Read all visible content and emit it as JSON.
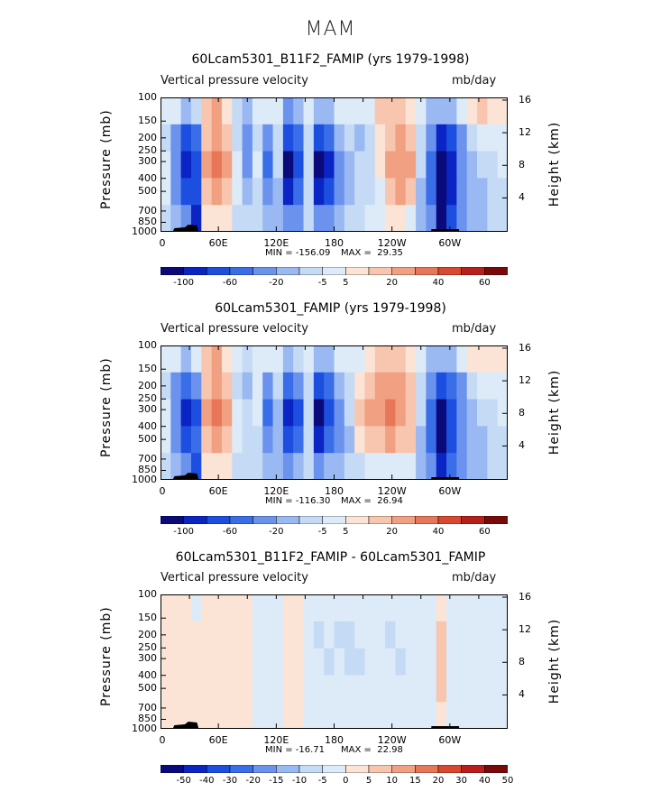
{
  "figure_title": "MAM",
  "chart_data": [
    {
      "type": "heatmap",
      "title": "60Lcam5301_B11F2_FAMIP (yrs 1979-1998)",
      "variable": "Vertical pressure velocity",
      "units": "mb/day",
      "ylabel": "Pressure (mb)",
      "ylabel_right": "Height (km)",
      "y_ticks": [
        "100",
        "150",
        "200",
        "250",
        "300",
        "400",
        "500",
        "700",
        "850",
        "1000"
      ],
      "height_ticks": [
        "16",
        "12",
        "8",
        "4"
      ],
      "x_ticks": [
        "0",
        "60E",
        "120E",
        "180",
        "120W",
        "60W"
      ],
      "min_label": "MIN = -156.09",
      "max_label": "MAX =  29.35",
      "colorbar_labels": [
        "-100",
        "-60",
        "-20",
        "-5",
        "5",
        "20",
        "40",
        "60"
      ],
      "colorbar_colors": [
        "#0a0a7a",
        "#0b24c4",
        "#1c4fe0",
        "#3a6ee8",
        "#6b93ee",
        "#9ab8f2",
        "#c5daf5",
        "#dcebf7",
        "#fbe4d6",
        "#f8c6ae",
        "#f1a082",
        "#e8775a",
        "#d9482f",
        "#b81f1a",
        "#7a0a0a"
      ],
      "field_values": [
        [
          -2,
          -4,
          -12,
          -6,
          6,
          14,
          4,
          -6,
          -12,
          -2,
          -4,
          -2,
          -20,
          -10,
          -2,
          -18,
          -12,
          -4,
          -2,
          -2,
          -4,
          6,
          8,
          6,
          2,
          -4,
          -10,
          -14,
          -12,
          -4,
          4,
          6,
          4,
          2
        ],
        [
          -6,
          -20,
          -60,
          -40,
          10,
          20,
          10,
          -6,
          -30,
          -6,
          -20,
          -6,
          -60,
          -40,
          -6,
          -70,
          -50,
          -10,
          -6,
          -10,
          -8,
          4,
          10,
          14,
          10,
          -6,
          -30,
          -90,
          -60,
          -20,
          -6,
          -4,
          -4,
          -2
        ],
        [
          -4,
          -30,
          -90,
          -70,
          18,
          26,
          14,
          -4,
          -20,
          -4,
          -40,
          -8,
          -100,
          -60,
          -8,
          -120,
          -80,
          -20,
          -10,
          -8,
          -8,
          2,
          14,
          20,
          16,
          -8,
          -40,
          -140,
          -90,
          -30,
          -10,
          -8,
          -6,
          -4
        ],
        [
          -4,
          -30,
          -70,
          -60,
          10,
          16,
          10,
          -4,
          -10,
          -6,
          -30,
          -10,
          -80,
          -50,
          -8,
          -90,
          -60,
          -20,
          -10,
          -8,
          -6,
          0,
          8,
          12,
          10,
          -10,
          -40,
          -120,
          -80,
          -30,
          -14,
          -10,
          -8,
          -6
        ],
        [
          -6,
          -14,
          -20,
          -80,
          2,
          4,
          2,
          -6,
          -6,
          -8,
          -14,
          -10,
          -30,
          -20,
          -8,
          -30,
          -20,
          -12,
          -8,
          -6,
          -4,
          -2,
          2,
          2,
          0,
          -10,
          -30,
          -100,
          -60,
          -20,
          -12,
          -10,
          -8,
          -8
        ]
      ]
    },
    {
      "type": "heatmap",
      "title": "60Lcam5301_FAMIP (yrs 1979-1998)",
      "variable": "Vertical pressure velocity",
      "units": "mb/day",
      "ylabel": "Pressure (mb)",
      "ylabel_right": "Height (km)",
      "y_ticks": [
        "100",
        "150",
        "200",
        "250",
        "300",
        "400",
        "500",
        "700",
        "850",
        "1000"
      ],
      "height_ticks": [
        "16",
        "12",
        "8",
        "4"
      ],
      "x_ticks": [
        "0",
        "60E",
        "120E",
        "180",
        "120W",
        "60W"
      ],
      "min_label": "MIN = -116.30",
      "max_label": "MAX =  26.94",
      "colorbar_labels": [
        "-100",
        "-60",
        "-20",
        "-5",
        "5",
        "20",
        "40",
        "60"
      ],
      "colorbar_colors": [
        "#0a0a7a",
        "#0b24c4",
        "#1c4fe0",
        "#3a6ee8",
        "#6b93ee",
        "#9ab8f2",
        "#c5daf5",
        "#dcebf7",
        "#fbe4d6",
        "#f8c6ae",
        "#f1a082",
        "#e8775a",
        "#d9482f",
        "#b81f1a",
        "#7a0a0a"
      ],
      "field_values": [
        [
          -2,
          -4,
          -10,
          -4,
          6,
          12,
          2,
          -4,
          -8,
          -2,
          -4,
          -2,
          -16,
          -8,
          -2,
          -14,
          -10,
          -2,
          -2,
          -2,
          2,
          6,
          8,
          6,
          2,
          -4,
          -10,
          -12,
          -10,
          -4,
          2,
          4,
          2,
          2
        ],
        [
          -6,
          -20,
          -50,
          -30,
          10,
          18,
          8,
          -6,
          -10,
          -4,
          -20,
          -8,
          -50,
          -30,
          -6,
          -60,
          -40,
          -10,
          -6,
          4,
          8,
          14,
          18,
          16,
          8,
          -6,
          -30,
          -70,
          -50,
          -20,
          -6,
          -4,
          -4,
          -2
        ],
        [
          -4,
          -30,
          -80,
          -60,
          16,
          24,
          12,
          -4,
          -8,
          -4,
          -40,
          -10,
          -90,
          -60,
          -8,
          -100,
          -70,
          -20,
          -8,
          6,
          12,
          20,
          24,
          20,
          10,
          -8,
          -40,
          -110,
          -70,
          -30,
          -10,
          -8,
          -6,
          -4
        ],
        [
          -4,
          -30,
          -60,
          -50,
          10,
          14,
          8,
          -4,
          -6,
          -6,
          -30,
          -10,
          -70,
          -40,
          -8,
          -80,
          -50,
          -20,
          -10,
          2,
          6,
          10,
          12,
          10,
          6,
          -10,
          -40,
          -100,
          -60,
          -30,
          -14,
          -10,
          -8,
          -6
        ],
        [
          -6,
          -14,
          -20,
          -60,
          2,
          4,
          2,
          -6,
          -6,
          -8,
          -14,
          -10,
          -20,
          -14,
          -8,
          -20,
          -14,
          -12,
          -8,
          -6,
          -4,
          -2,
          0,
          0,
          0,
          -10,
          -30,
          -80,
          -40,
          -20,
          -12,
          -10,
          -8,
          -8
        ]
      ]
    },
    {
      "type": "heatmap",
      "title": "60Lcam5301_B11F2_FAMIP - 60Lcam5301_FAMIP",
      "variable": "Vertical pressure velocity",
      "units": "mb/day",
      "ylabel": "Pressure (mb)",
      "ylabel_right": "Height (km)",
      "y_ticks": [
        "100",
        "150",
        "200",
        "250",
        "300",
        "400",
        "500",
        "700",
        "850",
        "1000"
      ],
      "height_ticks": [
        "16",
        "12",
        "8",
        "4"
      ],
      "x_ticks": [
        "0",
        "60E",
        "120E",
        "180",
        "120W",
        "60W"
      ],
      "min_label": "MIN = -16.71",
      "max_label": "MAX =  22.98",
      "colorbar_labels": [
        "-50",
        "-40",
        "-30",
        "-20",
        "-15",
        "-10",
        "-5",
        "0",
        "5",
        "10",
        "15",
        "20",
        "30",
        "40",
        "50"
      ],
      "colorbar_colors": [
        "#0a0a7a",
        "#0b24c4",
        "#1c4fe0",
        "#3a6ee8",
        "#6b93ee",
        "#9ab8f2",
        "#c5daf5",
        "#dcebf7",
        "#fbe4d6",
        "#f8c6ae",
        "#f1a082",
        "#e8775a",
        "#d9482f",
        "#b81f1a",
        "#7a0a0a"
      ],
      "field_values": [
        [
          2,
          3,
          2,
          -1,
          2,
          3,
          2,
          3,
          2,
          -2,
          -3,
          -2,
          2,
          1,
          -2,
          -3,
          -4,
          -4,
          -3,
          -3,
          -4,
          -4,
          -3,
          -2,
          -2,
          -3,
          -2,
          2,
          -2,
          -3,
          -2,
          -3,
          -3,
          -3
        ],
        [
          3,
          2,
          1,
          2,
          3,
          2,
          2,
          3,
          1,
          -2,
          -3,
          -3,
          2,
          2,
          -3,
          -6,
          -4,
          -6,
          -6,
          -4,
          -4,
          -4,
          -6,
          -4,
          -3,
          -3,
          -2,
          6,
          -3,
          -3,
          -2,
          -3,
          -3,
          -3
        ],
        [
          2,
          2,
          2,
          3,
          2,
          2,
          1,
          2,
          2,
          -2,
          -3,
          -2,
          1,
          2,
          -2,
          -4,
          -6,
          -4,
          -6,
          -6,
          -4,
          -4,
          -4,
          -6,
          -3,
          -2,
          -2,
          8,
          -2,
          -3,
          -3,
          -3,
          -3,
          -3
        ],
        [
          1,
          2,
          3,
          2,
          1,
          1,
          2,
          1,
          1,
          -1,
          -2,
          -2,
          2,
          2,
          -3,
          -4,
          -3,
          -4,
          -4,
          -4,
          -4,
          -3,
          -3,
          -3,
          -2,
          -2,
          -1,
          6,
          -2,
          -2,
          -3,
          -3,
          -3,
          -3
        ],
        [
          2,
          2,
          3,
          1,
          2,
          2,
          1,
          1,
          1,
          -1,
          -1,
          -1,
          1,
          1,
          -2,
          -2,
          -2,
          -2,
          -2,
          -2,
          -2,
          -1,
          -1,
          -1,
          -1,
          -1,
          -1,
          4,
          -1,
          -2,
          -2,
          -2,
          -2,
          -2
        ]
      ]
    }
  ]
}
